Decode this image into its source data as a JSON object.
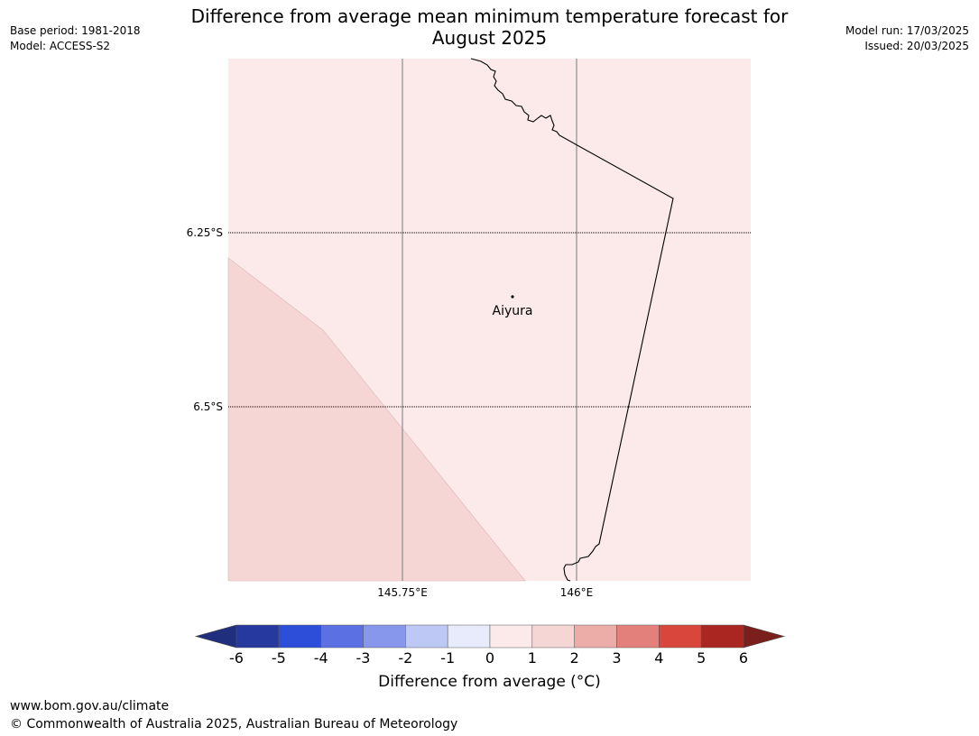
{
  "header": {
    "title_line1": "Difference from average mean minimum temperature forecast for",
    "title_line2": "August 2025",
    "base_period": "Base period: 1981-2018",
    "model": "Model: ACCESS-S2",
    "model_run": "Model run: 17/03/2025",
    "issued": "Issued: 20/03/2025"
  },
  "map": {
    "lat_labels": [
      "6.25°S",
      "6.5°S"
    ],
    "lon_labels": [
      "145.75°E",
      "146°E"
    ],
    "place": {
      "name": "Aiyura"
    },
    "background_color": "#fbeae9",
    "shade_color": "#f5d6d5",
    "coast_color": "#000000"
  },
  "colorbar": {
    "ticks": [
      "-6",
      "-5",
      "-4",
      "-3",
      "-2",
      "-1",
      "0",
      "1",
      "2",
      "3",
      "4",
      "5",
      "6"
    ],
    "colors": [
      "#26399e",
      "#2c4ed8",
      "#5a70e3",
      "#8797ec",
      "#bec8f4",
      "#e8ebfb",
      "#fbeae9",
      "#f5d6d5",
      "#ecada9",
      "#e4807c",
      "#d9473c",
      "#a92621"
    ],
    "under_color": "#1f2f7e",
    "over_color": "#7a1f1b",
    "label": "Difference from average ($^\\circ$C)",
    "label_display": "Difference from average (°C)"
  },
  "footer": {
    "url": "www.bom.gov.au/climate",
    "copyright": "© Commonwealth of Australia 2025, Australian Bureau of Meteorology"
  }
}
